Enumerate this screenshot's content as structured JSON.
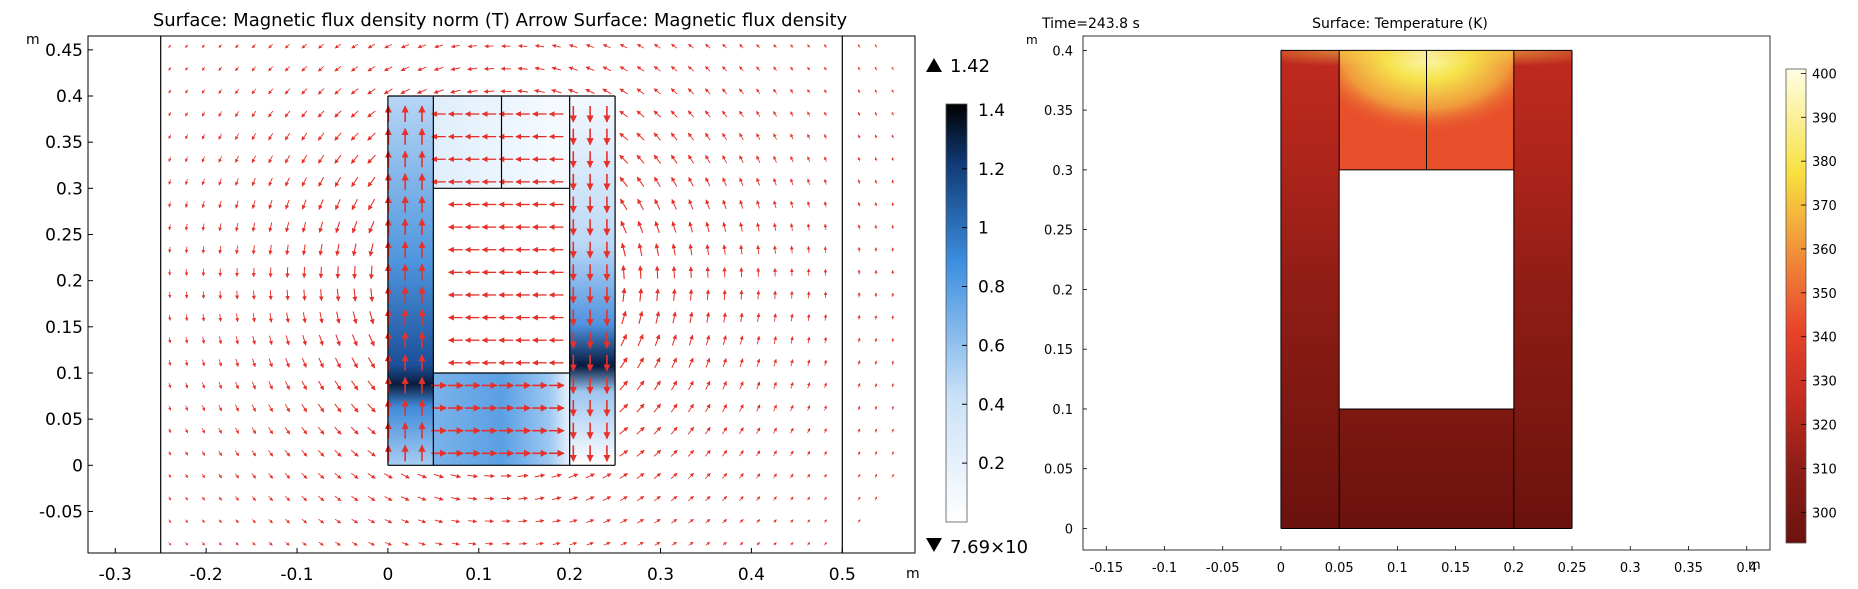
{
  "chart_data": [
    {
      "type": "heatmap",
      "title": "Surface: Magnetic flux density norm (T)  Arrow Surface: Magnetic flux density",
      "xlabel": "m",
      "ylabel": "m",
      "xlim": [
        -0.33,
        0.58
      ],
      "ylim": [
        -0.095,
        0.465
      ],
      "x_ticks": [
        "-0.3",
        "-0.2",
        "-0.1",
        "0",
        "0.1",
        "0.2",
        "0.3",
        "0.4",
        "0.5"
      ],
      "y_ticks": [
        "-0.05",
        "0",
        "0.05",
        "0.1",
        "0.15",
        "0.2",
        "0.25",
        "0.3",
        "0.35",
        "0.4",
        "0.45"
      ],
      "domain_boundary_x": [
        -0.25,
        0.5
      ],
      "core_region": {
        "x": [
          0,
          0.25
        ],
        "y": [
          0,
          0.4
        ],
        "window_x": [
          0.05,
          0.2
        ],
        "window_y": [
          0.1,
          0.3
        ]
      },
      "colorbar": {
        "max_label": "1.42",
        "min_label": "7.69×10",
        "ticks": [
          "1.4",
          "1.2",
          "1",
          "0.8",
          "0.6",
          "0.4",
          "0.2"
        ],
        "range": [
          0,
          1.42
        ],
        "colors": [
          "#ffffff",
          "#9fcbf2",
          "#3d8fe0",
          "#0a2a55",
          "#000000"
        ]
      },
      "arrow_color": "#e8302a"
    },
    {
      "type": "heatmap",
      "time_label": "Time=243.8 s",
      "title": "Surface: Temperature (K)",
      "xlabel": "m",
      "ylabel": "m",
      "xlim": [
        -0.17,
        0.42
      ],
      "ylim": [
        -0.018,
        0.412
      ],
      "x_ticks": [
        "-0.15",
        "-0.1",
        "-0.05",
        "0",
        "0.05",
        "0.1",
        "0.15",
        "0.2",
        "0.25",
        "0.3",
        "0.35",
        "0.4"
      ],
      "y_ticks": [
        "0",
        "0.05",
        "0.1",
        "0.15",
        "0.2",
        "0.25",
        "0.3",
        "0.35",
        "0.4"
      ],
      "core_region": {
        "x": [
          0,
          0.25
        ],
        "y": [
          0,
          0.4
        ],
        "window_x": [
          0.05,
          0.2
        ],
        "window_y": [
          0.1,
          0.3
        ]
      },
      "colorbar": {
        "ticks": [
          "400",
          "390",
          "380",
          "370",
          "360",
          "350",
          "340",
          "330",
          "320",
          "310",
          "300"
        ],
        "range": [
          293,
          401
        ],
        "colors": [
          "#6b120e",
          "#a5241b",
          "#e0362a",
          "#f08a3a",
          "#f8e040",
          "#fdfcd8"
        ]
      }
    }
  ]
}
